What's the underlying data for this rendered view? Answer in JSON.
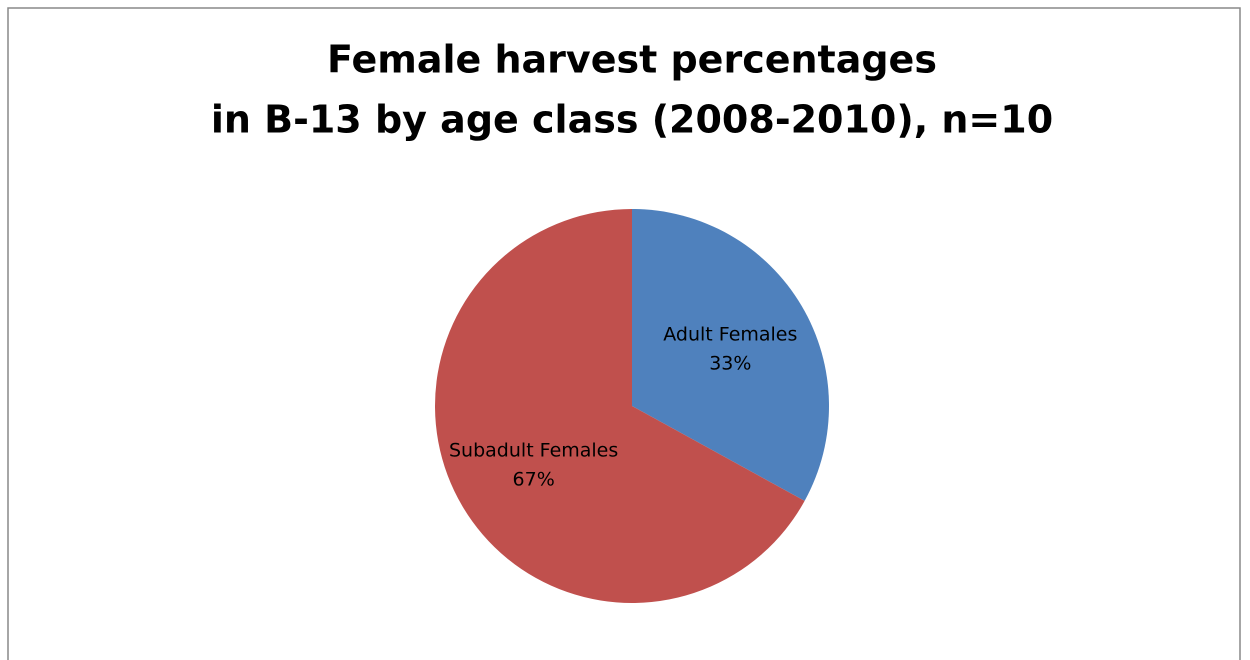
{
  "chart_data": {
    "type": "pie",
    "title": [
      "Female harvest percentages",
      "in B-13 by age class (2008-2010), n=10"
    ],
    "categories": [
      "Adult Females",
      "Subadult Females"
    ],
    "values": [
      33,
      67
    ],
    "value_labels": [
      "33%",
      "67%"
    ],
    "colors": [
      "#4f81bd",
      "#c0504d"
    ]
  }
}
